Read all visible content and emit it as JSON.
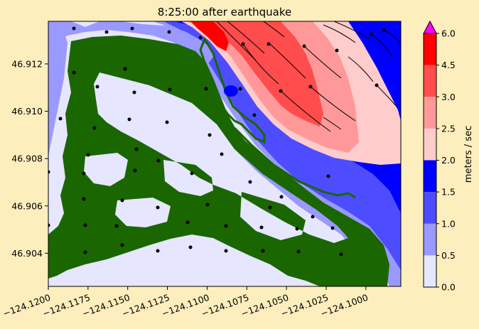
{
  "chart_data": {
    "type": "heatmap",
    "title": "8:25:00 after earthquake",
    "x_ticks": [
      "−124.1200",
      "−124.1175",
      "−124.1150",
      "−124.1125",
      "−124.1100",
      "−124.1075",
      "−124.1050",
      "−124.1025",
      "−124.1000"
    ],
    "x_tick_values": [
      -124.12,
      -124.1175,
      -124.115,
      -124.1125,
      -124.11,
      -124.1075,
      -124.105,
      -124.1025,
      -124.1
    ],
    "xlim": [
      -124.12,
      -124.0978
    ],
    "y_ticks": [
      "46.904",
      "46.906",
      "46.908",
      "46.910",
      "46.912"
    ],
    "y_tick_values": [
      46.904,
      46.906,
      46.908,
      46.91,
      46.912
    ],
    "ylim": [
      46.9026,
      46.9138
    ],
    "colorbar": {
      "label": "meters / sec",
      "ticks": [
        "0.0",
        "0.5",
        "1.0",
        "1.5",
        "2.0",
        "2.5",
        "3.0",
        "4.5",
        "6.0"
      ],
      "levels": [
        0.0,
        0.5,
        1.0,
        1.5,
        2.0,
        2.5,
        3.0,
        4.5,
        6.0
      ],
      "colors": [
        "#e6e6ff",
        "#9999ff",
        "#4d4dff",
        "#0000ff",
        "#ffcccc",
        "#ff9999",
        "#ff4d4d",
        "#ff0000"
      ],
      "extend_color": "#ff00ff"
    },
    "land_color": "#1a6600",
    "background_color": "#fdeebd"
  }
}
